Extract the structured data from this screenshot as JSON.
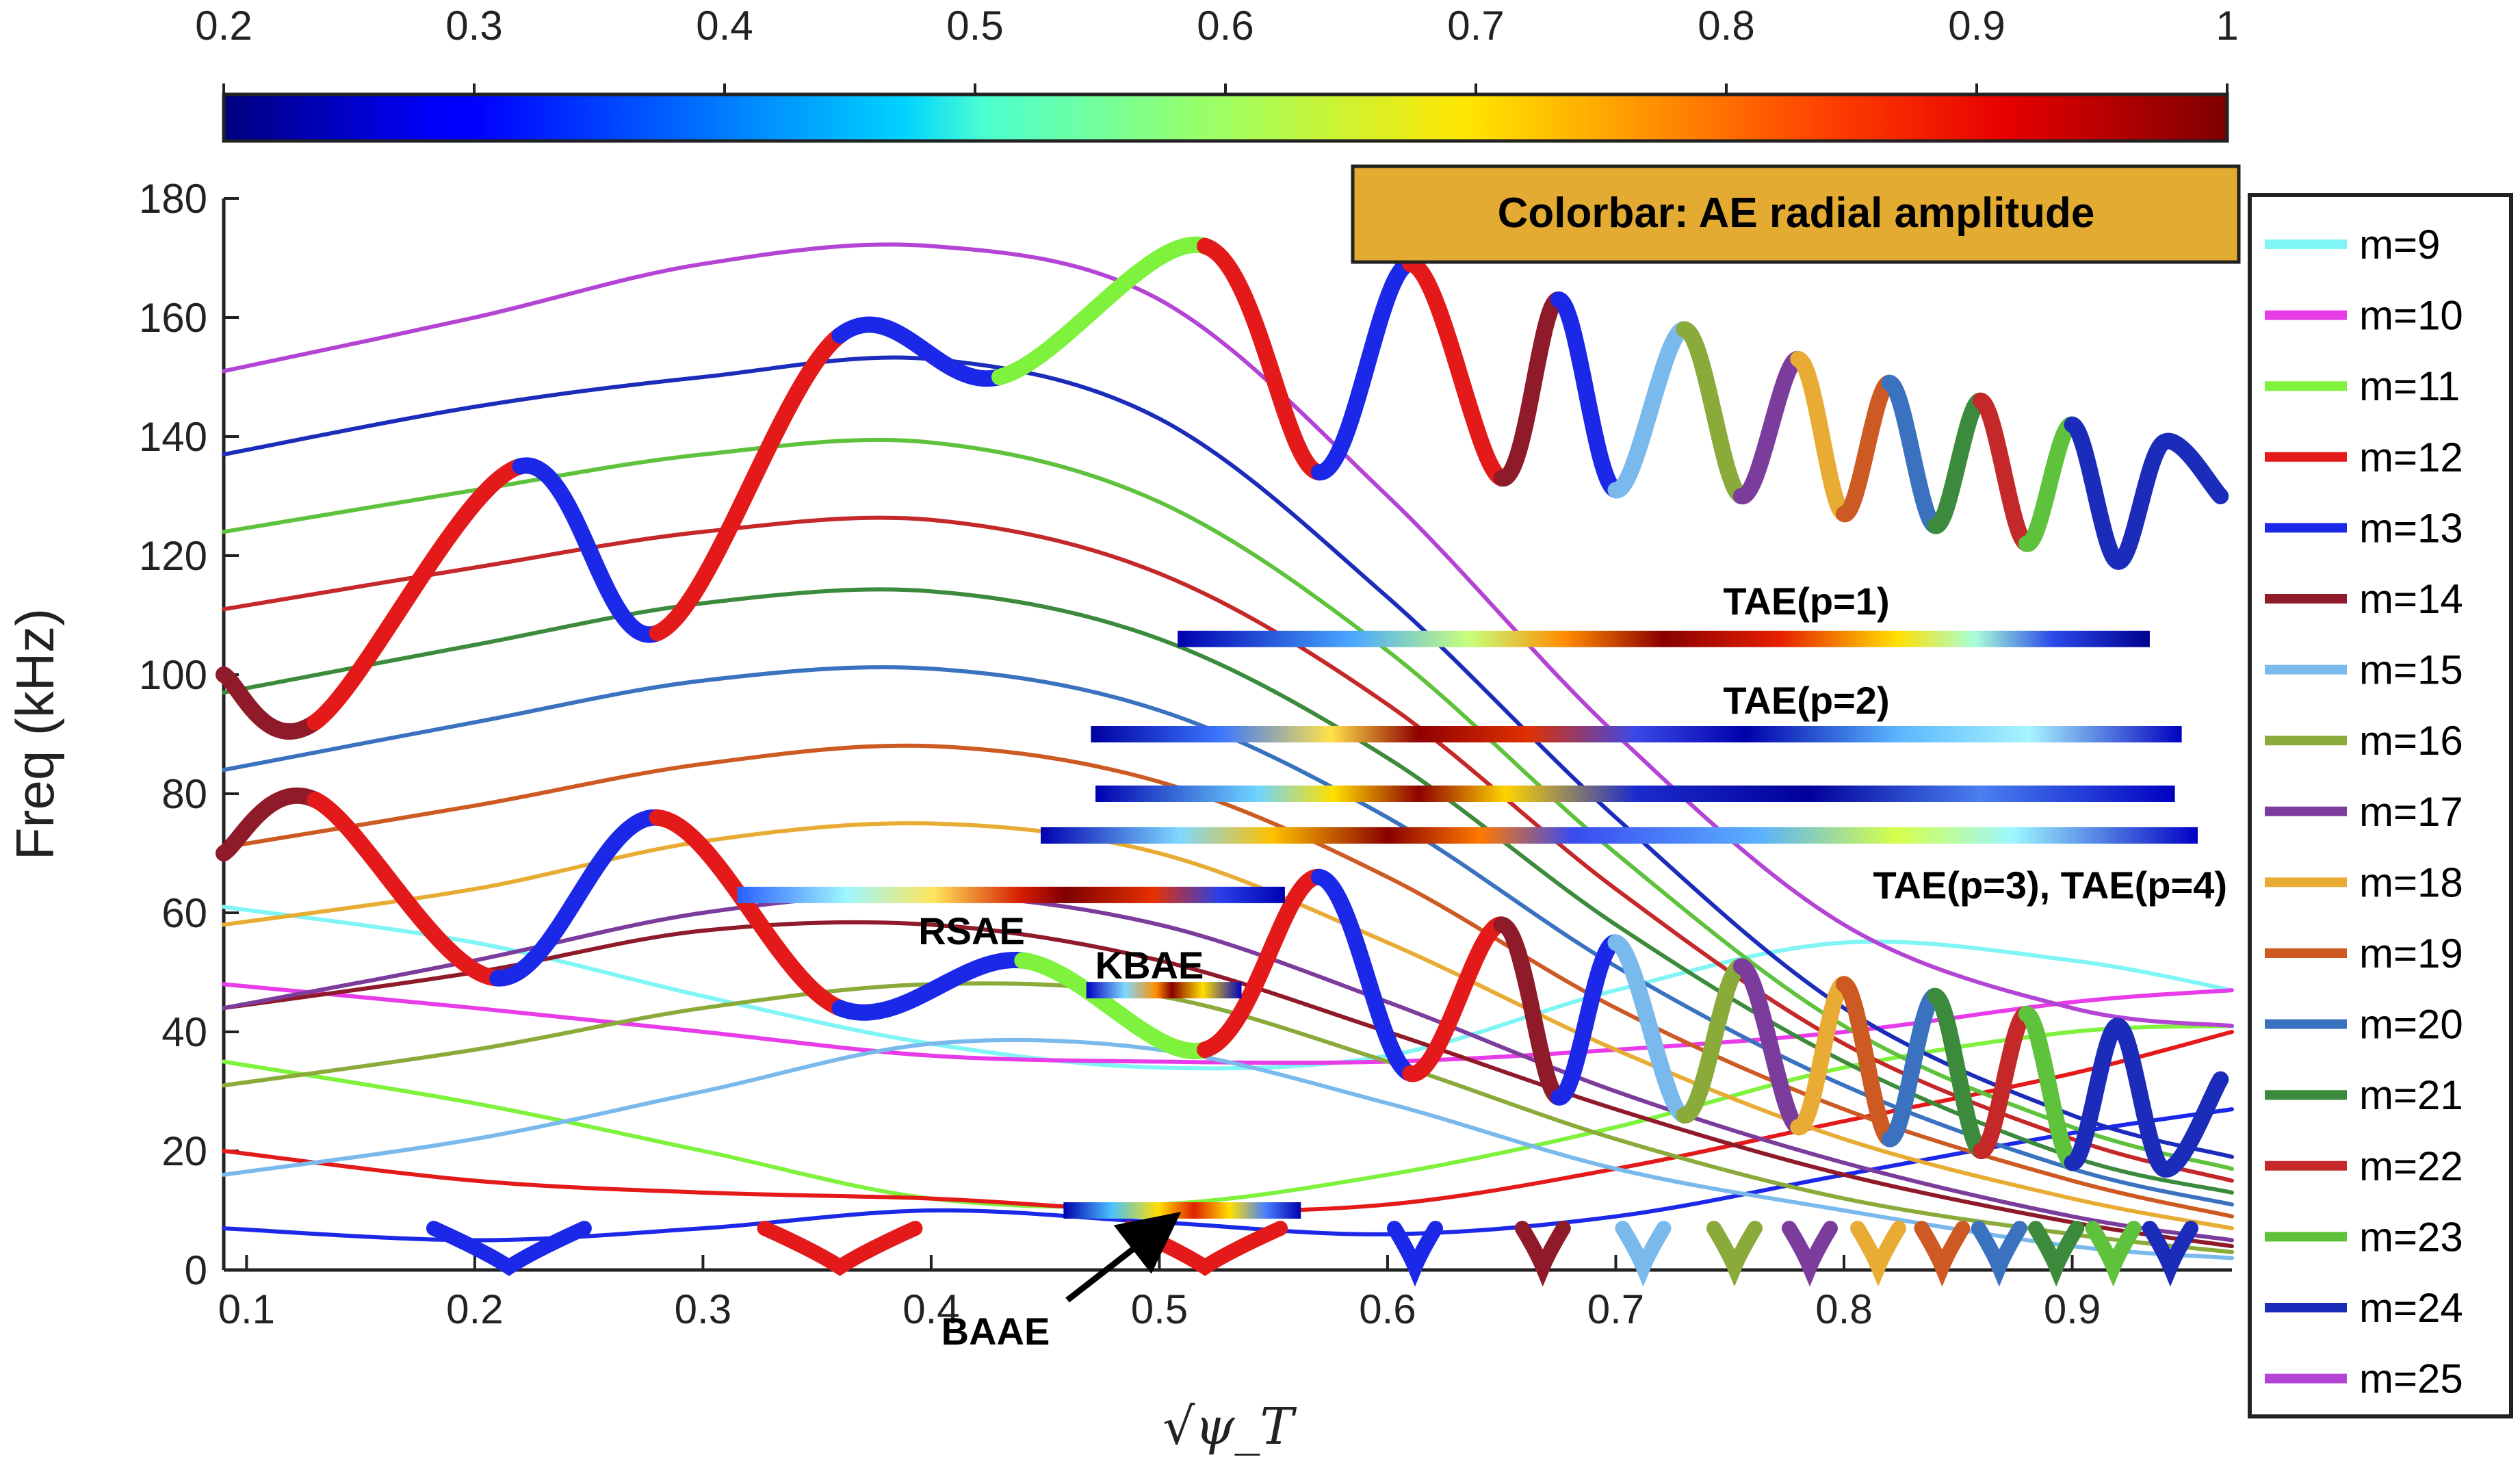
{
  "chart_data": {
    "type": "line",
    "title": "",
    "xlabel": "√ψ_T",
    "ylabel": "Freq (kHz)",
    "xlim": [
      0.09,
      0.97
    ],
    "ylim": [
      0,
      180
    ],
    "x_ticks": [
      "0.1",
      "0.2",
      "0.3",
      "0.4",
      "0.5",
      "0.6",
      "0.7",
      "0.8",
      "0.9"
    ],
    "x_tick_values": [
      0.1,
      0.2,
      0.3,
      0.4,
      0.5,
      0.6,
      0.7,
      0.8,
      0.9
    ],
    "y_ticks": [
      "0",
      "20",
      "40",
      "60",
      "80",
      "100",
      "120",
      "140",
      "160",
      "180"
    ],
    "y_tick_values": [
      0,
      20,
      40,
      60,
      80,
      100,
      120,
      140,
      160,
      180
    ],
    "colorbar": {
      "title": "Colorbar: AE radial amplitude",
      "ticks": [
        "0.2",
        "0.3",
        "0.4",
        "0.5",
        "0.6",
        "0.7",
        "0.8",
        "0.9",
        "1"
      ],
      "tick_values": [
        0.2,
        0.3,
        0.4,
        0.5,
        0.6,
        0.7,
        0.8,
        0.9,
        1.0
      ],
      "range": [
        0.2,
        1.0
      ],
      "colormap": "jet"
    },
    "legend_position": "outside-right",
    "series": [
      {
        "name": "m=9",
        "color": "#7ff5f5",
        "x": [
          0.09,
          0.2,
          0.3,
          0.4,
          0.5,
          0.6,
          0.7,
          0.8,
          0.9,
          0.97
        ],
        "y": [
          61,
          55,
          46,
          38,
          34,
          36,
          47,
          55,
          52,
          47
        ]
      },
      {
        "name": "m=10",
        "color": "#e83ce8",
        "x": [
          0.09,
          0.2,
          0.3,
          0.4,
          0.5,
          0.6,
          0.7,
          0.8,
          0.9,
          0.97
        ],
        "y": [
          48,
          44,
          40,
          36,
          35,
          35,
          37,
          40,
          45,
          47
        ]
      },
      {
        "name": "m=11",
        "color": "#7ef23c",
        "x": [
          0.09,
          0.2,
          0.3,
          0.4,
          0.5,
          0.6,
          0.7,
          0.8,
          0.9,
          0.97
        ],
        "y": [
          35,
          28,
          20,
          12,
          11,
          16,
          24,
          34,
          40,
          41
        ]
      },
      {
        "name": "m=12",
        "color": "#e41a1a",
        "x": [
          0.09,
          0.2,
          0.3,
          0.4,
          0.5,
          0.6,
          0.7,
          0.8,
          0.9,
          0.97
        ],
        "y": [
          20,
          15,
          13,
          12,
          10,
          11,
          17,
          25,
          33,
          40
        ]
      },
      {
        "name": "m=13",
        "color": "#1c28e8",
        "x": [
          0.09,
          0.2,
          0.3,
          0.4,
          0.5,
          0.6,
          0.7,
          0.8,
          0.9,
          0.97
        ],
        "y": [
          7,
          5,
          7,
          10,
          8,
          6,
          9,
          16,
          23,
          27
        ]
      },
      {
        "name": "m=14",
        "color": "#8e1a2a",
        "x": [
          0.09,
          0.2,
          0.3,
          0.4,
          0.5,
          0.6,
          0.7,
          0.8,
          0.9,
          0.97
        ],
        "y": [
          44,
          50,
          57,
          58,
          52,
          40,
          27,
          16,
          8,
          4
        ]
      },
      {
        "name": "m=15",
        "color": "#7ab9ec",
        "x": [
          0.09,
          0.2,
          0.3,
          0.4,
          0.5,
          0.6,
          0.7,
          0.8,
          0.9,
          0.97
        ],
        "y": [
          16,
          22,
          30,
          38,
          37,
          28,
          17,
          10,
          4,
          2
        ]
      },
      {
        "name": "m=16",
        "color": "#8aaa3a",
        "x": [
          0.09,
          0.2,
          0.3,
          0.4,
          0.5,
          0.6,
          0.7,
          0.8,
          0.9,
          0.97
        ],
        "y": [
          31,
          37,
          44,
          48,
          46,
          35,
          22,
          12,
          6,
          3
        ]
      },
      {
        "name": "m=17",
        "color": "#7b3c9c",
        "x": [
          0.09,
          0.2,
          0.3,
          0.4,
          0.5,
          0.6,
          0.7,
          0.8,
          0.9,
          0.97
        ],
        "y": [
          44,
          52,
          60,
          63,
          58,
          45,
          30,
          18,
          9,
          5
        ]
      },
      {
        "name": "m=18",
        "color": "#e8ac34",
        "x": [
          0.09,
          0.2,
          0.3,
          0.4,
          0.5,
          0.6,
          0.7,
          0.8,
          0.9,
          0.97
        ],
        "y": [
          58,
          64,
          72,
          75,
          70,
          55,
          37,
          22,
          12,
          7
        ]
      },
      {
        "name": "m=19",
        "color": "#cc5a22",
        "x": [
          0.09,
          0.2,
          0.3,
          0.4,
          0.5,
          0.6,
          0.7,
          0.8,
          0.9,
          0.97
        ],
        "y": [
          71,
          78,
          85,
          88,
          82,
          66,
          44,
          27,
          15,
          9
        ]
      },
      {
        "name": "m=20",
        "color": "#3a72c0",
        "x": [
          0.09,
          0.2,
          0.3,
          0.4,
          0.5,
          0.6,
          0.7,
          0.8,
          0.9,
          0.97
        ],
        "y": [
          84,
          92,
          99,
          101,
          94,
          76,
          51,
          31,
          17,
          11
        ]
      },
      {
        "name": "m=21",
        "color": "#3c8a3c",
        "x": [
          0.09,
          0.2,
          0.3,
          0.4,
          0.5,
          0.6,
          0.7,
          0.8,
          0.9,
          0.97
        ],
        "y": [
          97,
          105,
          112,
          114,
          106,
          86,
          58,
          35,
          19,
          13
        ]
      },
      {
        "name": "m=22",
        "color": "#c42828",
        "x": [
          0.09,
          0.2,
          0.3,
          0.4,
          0.5,
          0.6,
          0.7,
          0.8,
          0.9,
          0.97
        ],
        "y": [
          111,
          118,
          124,
          126,
          117,
          95,
          64,
          38,
          22,
          15
        ]
      },
      {
        "name": "m=23",
        "color": "#5ec23c",
        "x": [
          0.09,
          0.2,
          0.3,
          0.4,
          0.5,
          0.6,
          0.7,
          0.8,
          0.9,
          0.97
        ],
        "y": [
          124,
          131,
          137,
          139,
          129,
          104,
          70,
          41,
          24,
          17
        ]
      },
      {
        "name": "m=24",
        "color": "#1c2cba",
        "x": [
          0.09,
          0.2,
          0.3,
          0.4,
          0.5,
          0.6,
          0.7,
          0.8,
          0.9,
          0.97
        ],
        "y": [
          137,
          145,
          150,
          153,
          143,
          113,
          76,
          44,
          26,
          19
        ]
      },
      {
        "name": "m=25",
        "color": "#b444d4",
        "x": [
          0.09,
          0.2,
          0.3,
          0.4,
          0.5,
          0.6,
          0.7,
          0.8,
          0.9,
          0.97
        ],
        "y": [
          151,
          160,
          169,
          172,
          163,
          130,
          90,
          58,
          44,
          41
        ]
      }
    ],
    "continuum_edges": [
      {
        "name": "upper-edge-1",
        "points": [
          [
            0.09,
            100
          ],
          [
            0.13,
            92
          ],
          [
            0.22,
            135
          ],
          [
            0.28,
            107
          ],
          [
            0.36,
            157
          ],
          [
            0.43,
            150
          ],
          [
            0.52,
            172
          ],
          [
            0.57,
            134
          ],
          [
            0.61,
            169
          ],
          [
            0.65,
            133
          ],
          [
            0.675,
            163
          ],
          [
            0.7,
            131
          ],
          [
            0.73,
            158
          ],
          [
            0.755,
            130
          ],
          [
            0.78,
            153
          ],
          [
            0.8,
            127
          ],
          [
            0.82,
            149
          ],
          [
            0.84,
            125
          ],
          [
            0.86,
            146
          ],
          [
            0.88,
            122
          ],
          [
            0.9,
            142
          ],
          [
            0.92,
            119
          ],
          [
            0.94,
            139
          ],
          [
            0.965,
            130
          ]
        ]
      },
      {
        "name": "upper-edge-2",
        "points": [
          [
            0.09,
            70
          ],
          [
            0.13,
            79
          ],
          [
            0.21,
            49
          ],
          [
            0.28,
            76
          ],
          [
            0.36,
            44
          ],
          [
            0.44,
            52
          ],
          [
            0.52,
            37
          ],
          [
            0.57,
            66
          ],
          [
            0.61,
            33
          ],
          [
            0.65,
            58
          ],
          [
            0.675,
            29
          ],
          [
            0.7,
            55
          ],
          [
            0.73,
            26
          ],
          [
            0.755,
            51
          ],
          [
            0.78,
            24
          ],
          [
            0.8,
            48
          ],
          [
            0.82,
            22
          ],
          [
            0.84,
            46
          ],
          [
            0.86,
            20
          ],
          [
            0.88,
            43
          ],
          [
            0.9,
            18
          ],
          [
            0.92,
            41
          ],
          [
            0.94,
            17
          ],
          [
            0.965,
            32
          ]
        ]
      }
    ],
    "modes": [
      {
        "label": "TAE(p=1)",
        "freq": 106,
        "x_start": 0.508,
        "x_end": 0.934
      },
      {
        "label": "TAE(p=2)",
        "freq": 90,
        "x_start": 0.47,
        "x_end": 0.948
      },
      {
        "label": "TAE(p=3), TAE(p=4)",
        "freq": 80,
        "x_start": 0.472,
        "x_end": 0.945
      },
      {
        "label": "TAE(p=3), TAE(p=4)",
        "freq": 73,
        "x_start": 0.448,
        "x_end": 0.955
      },
      {
        "label": "RSAE",
        "freq": 63,
        "x_start": 0.315,
        "x_end": 0.555
      },
      {
        "label": "KBAE",
        "freq": 47,
        "x_start": 0.468,
        "x_end": 0.536
      },
      {
        "label": "BAAE",
        "freq": 10,
        "x_start": 0.458,
        "x_end": 0.562
      }
    ],
    "annotations": [
      "TAE(p=1)",
      "TAE(p=2)",
      "TAE(p=3), TAE(p=4)",
      "RSAE",
      "KBAE",
      "BAAE"
    ]
  }
}
